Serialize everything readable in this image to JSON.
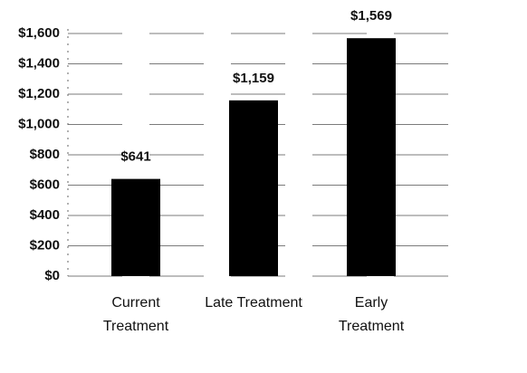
{
  "chart_data": {
    "type": "bar",
    "categories": [
      "Current Treatment",
      "Late Treatment",
      "Early Treatment"
    ],
    "values": [
      641,
      1159,
      1569
    ],
    "value_labels": [
      "$641",
      "$1,159",
      "$1,569"
    ],
    "color": "#000000",
    "ylim": [
      0,
      1600
    ],
    "yticks": [
      {
        "value": 0,
        "label": "$0"
      },
      {
        "value": 200,
        "label": "$200"
      },
      {
        "value": 400,
        "label": "$400"
      },
      {
        "value": 600,
        "label": "$600"
      },
      {
        "value": 800,
        "label": "$800"
      },
      {
        "value": 1000,
        "label": "$1,000"
      },
      {
        "value": 1200,
        "label": "$1,200"
      },
      {
        "value": 1400,
        "label": "$1,400"
      },
      {
        "value": 1600,
        "label": "$1,600"
      }
    ],
    "grid": true
  }
}
